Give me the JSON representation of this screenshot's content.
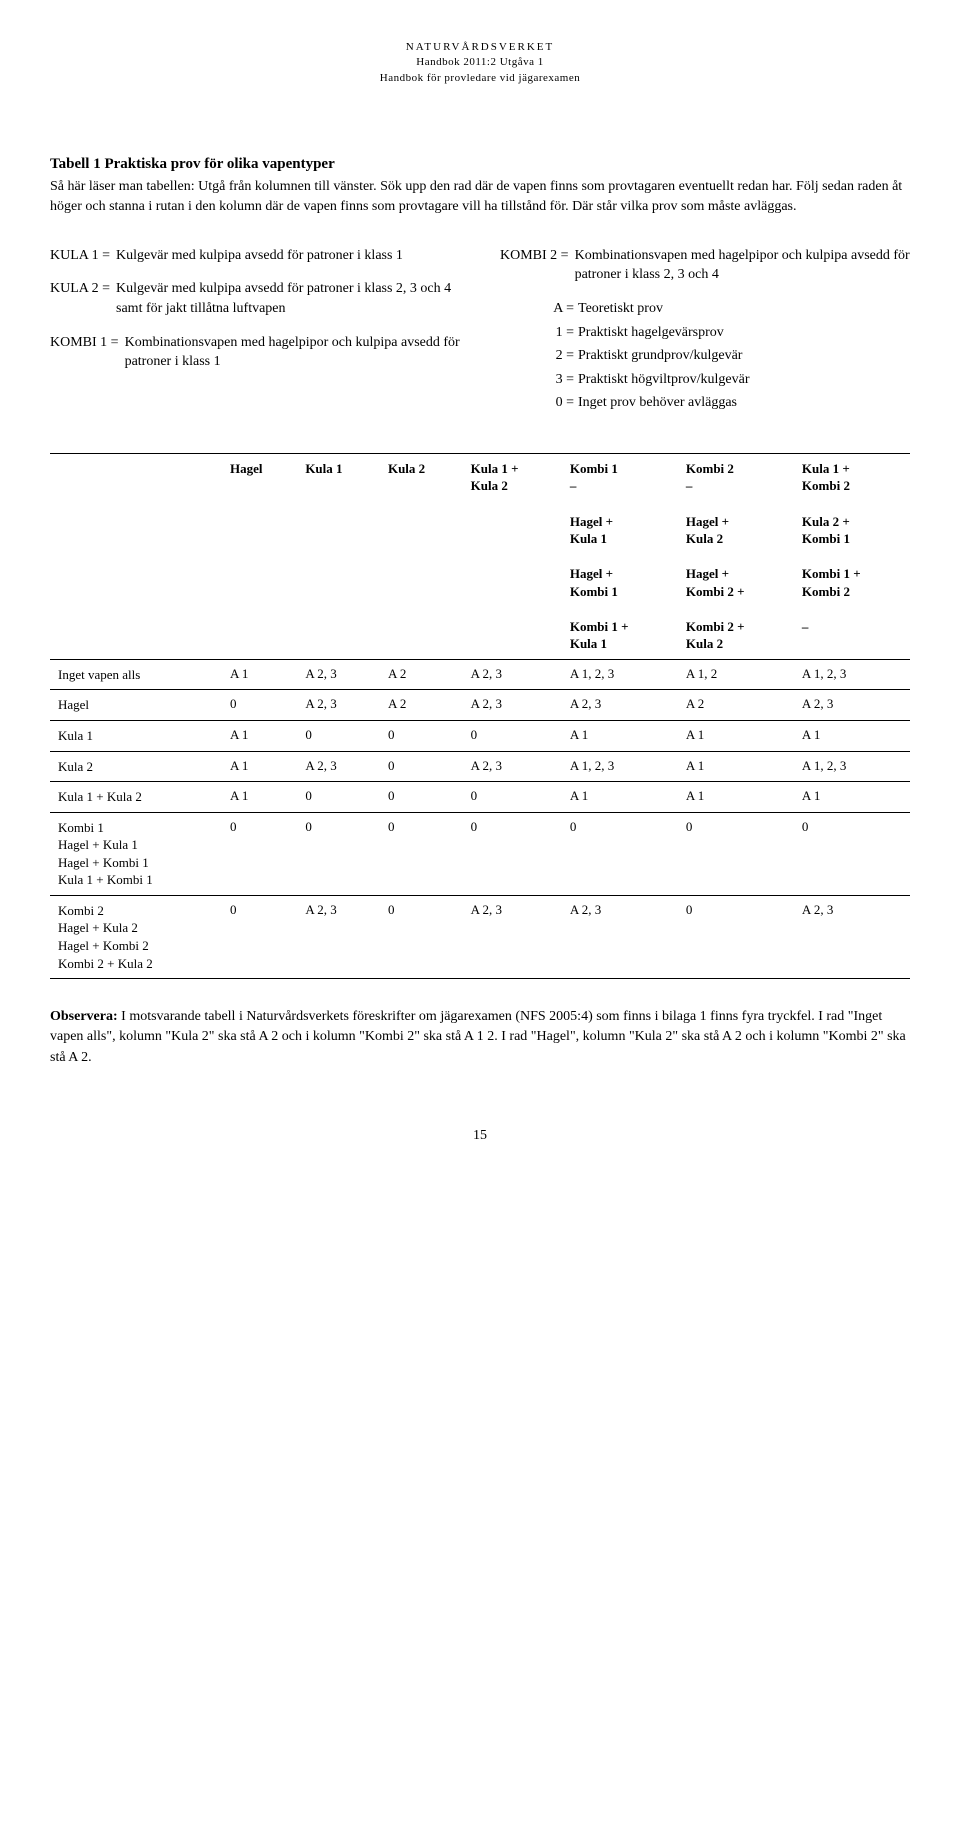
{
  "header": {
    "line1": "NATURVÅRDSVERKET",
    "line2": "Handbok 2011:2 Utgåva 1",
    "line3": "Handbok för provledare vid jägarexamen"
  },
  "title": "Tabell 1 Praktiska prov för olika vapentyper",
  "intro": "Så här läser man tabellen: Utgå från kolumnen till vänster. Sök upp den rad där de vapen finns som provtagaren eventuellt redan har. Följ sedan raden åt höger och stanna i rutan i den kolumn där de vapen finns som provtagare vill ha tillstånd för. Där står vilka prov som måste avläggas.",
  "defs_left": [
    {
      "label": "KULA 1 =",
      "text": "Kulgevär med kulpipa avsedd för patroner i klass 1"
    },
    {
      "label": "KULA 2 =",
      "text": "Kulgevär med kulpipa avsedd för patroner i klass 2, 3 och 4 samt för jakt tillåtna luftvapen"
    },
    {
      "label": "KOMBI 1 =",
      "text": "Kombinationsvapen med hagelpipor och kulpipa avsedd för patroner i klass 1"
    }
  ],
  "defs_right_top": {
    "label": "KOMBI 2 =",
    "text": "Kombinationsvapen med hagelpipor och kulpipa avsedd för patroner i klass 2, 3 och 4"
  },
  "legend": [
    {
      "label": "A =",
      "text": "Teoretiskt prov"
    },
    {
      "label": "1 =",
      "text": "Praktiskt hagelgevärsprov"
    },
    {
      "label": "2 =",
      "text": "Praktiskt grundprov/kulgevär"
    },
    {
      "label": "3 =",
      "text": "Praktiskt högviltprov/kulgevär"
    },
    {
      "label": "0 =",
      "text": "Inget prov behöver avläggas"
    }
  ],
  "table": {
    "columns": [
      "",
      "Hagel",
      "Kula 1",
      "Kula 2",
      "Kula 1 +\nKula 2",
      "Kombi 1\n–\n\nHagel +\nKula 1\n\nHagel +\nKombi 1\n\nKombi 1 +\nKula 1",
      "Kombi 2\n–\n\nHagel +\nKula 2\n\nHagel +\nKombi 2 +\n\nKombi 2 +\nKula 2",
      "Kula 1 +\nKombi 2\n\nKula 2 +\nKombi 1\n\nKombi 1 +\nKombi 2\n\n–"
    ],
    "rows": [
      {
        "head": "Inget vapen alls",
        "cells": [
          "A 1",
          "A 2, 3",
          "A 2",
          "A 2, 3",
          "A 1, 2, 3",
          "A 1, 2",
          "A 1, 2, 3"
        ]
      },
      {
        "head": "Hagel",
        "cells": [
          "0",
          "A 2, 3",
          "A 2",
          "A 2, 3",
          "A 2, 3",
          "A 2",
          "A 2, 3"
        ]
      },
      {
        "head": "Kula 1",
        "cells": [
          "A 1",
          "0",
          "0",
          "0",
          "A 1",
          "A 1",
          "A 1"
        ]
      },
      {
        "head": "Kula 2",
        "cells": [
          "A 1",
          "A 2, 3",
          "0",
          "A 2, 3",
          "A 1, 2, 3",
          "A 1",
          "A 1, 2, 3"
        ]
      },
      {
        "head": "Kula 1 + Kula 2",
        "cells": [
          "A 1",
          "0",
          "0",
          "0",
          "A 1",
          "A 1",
          "A 1"
        ]
      },
      {
        "head": "Kombi 1\nHagel + Kula 1\nHagel + Kombi 1\nKula 1 + Kombi 1",
        "cells": [
          "0",
          "0",
          "0",
          "0",
          "0",
          "0",
          "0"
        ]
      },
      {
        "head": "Kombi 2\nHagel + Kula 2\nHagel + Kombi 2\nKombi 2 + Kula 2",
        "cells": [
          "0",
          "A 2, 3",
          "0",
          "A 2, 3",
          "A 2, 3",
          "0",
          "A 2, 3"
        ]
      }
    ]
  },
  "observera_label": "Observera:",
  "observera_text": " I motsvarande tabell i Naturvårdsverkets föreskrifter om jägarexamen (NFS 2005:4) som finns i bilaga 1 finns fyra tryckfel. I rad \"Inget vapen alls\", kolumn \"Kula 2\" ska stå A 2 och i kolumn \"Kombi 2\" ska stå A 1 2. I rad \"Hagel\", kolumn \"Kula 2\" ska stå A 2 och i kolumn \"Kombi 2\" ska stå A 2.",
  "pagenum": "15"
}
